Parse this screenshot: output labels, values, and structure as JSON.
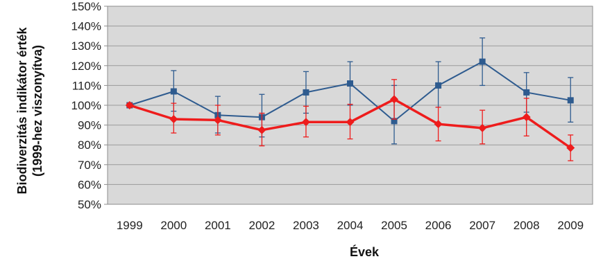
{
  "chart_data": {
    "type": "line",
    "title": "",
    "xlabel": "Évek",
    "ylabel_line1": "Biodiverzitás indikátor érték",
    "ylabel_line2": "(1999-hez viszonyítva)",
    "categories": [
      "1999",
      "2000",
      "2001",
      "2002",
      "2003",
      "2004",
      "2005",
      "2006",
      "2007",
      "2008",
      "2009"
    ],
    "yticks": [
      "50%",
      "60%",
      "70%",
      "80%",
      "90%",
      "100%",
      "110%",
      "120%",
      "130%",
      "140%",
      "150%"
    ],
    "ylim": [
      50,
      150
    ],
    "grid": true,
    "legend": "none",
    "background_color": "#d9d9d9",
    "series": [
      {
        "color": "#2e5b8f",
        "marker": "square",
        "line_width": "normal",
        "values": [
          100,
          107,
          95,
          94,
          106.5,
          111,
          92,
          110,
          122,
          106.5,
          102.5
        ],
        "error_upper": [
          101,
          117.5,
          104.5,
          105.5,
          117,
          122,
          110,
          122,
          134,
          116.5,
          114
        ],
        "error_lower": [
          99,
          97,
          86,
          84,
          96,
          100,
          80.5,
          99,
          110,
          96.5,
          91.5
        ]
      },
      {
        "color": "#ee1c1c",
        "marker": "diamond",
        "line_width": "thick",
        "values": [
          100,
          93,
          92.5,
          87.5,
          91.5,
          91.5,
          103,
          90.5,
          88.5,
          94,
          78.5
        ],
        "error_upper": [
          101,
          101,
          100,
          96,
          99.5,
          100.5,
          113,
          99,
          97.5,
          103.5,
          85
        ],
        "error_lower": [
          99,
          86,
          85,
          79.5,
          84,
          83,
          93,
          82,
          80.5,
          84.5,
          72
        ]
      }
    ]
  }
}
